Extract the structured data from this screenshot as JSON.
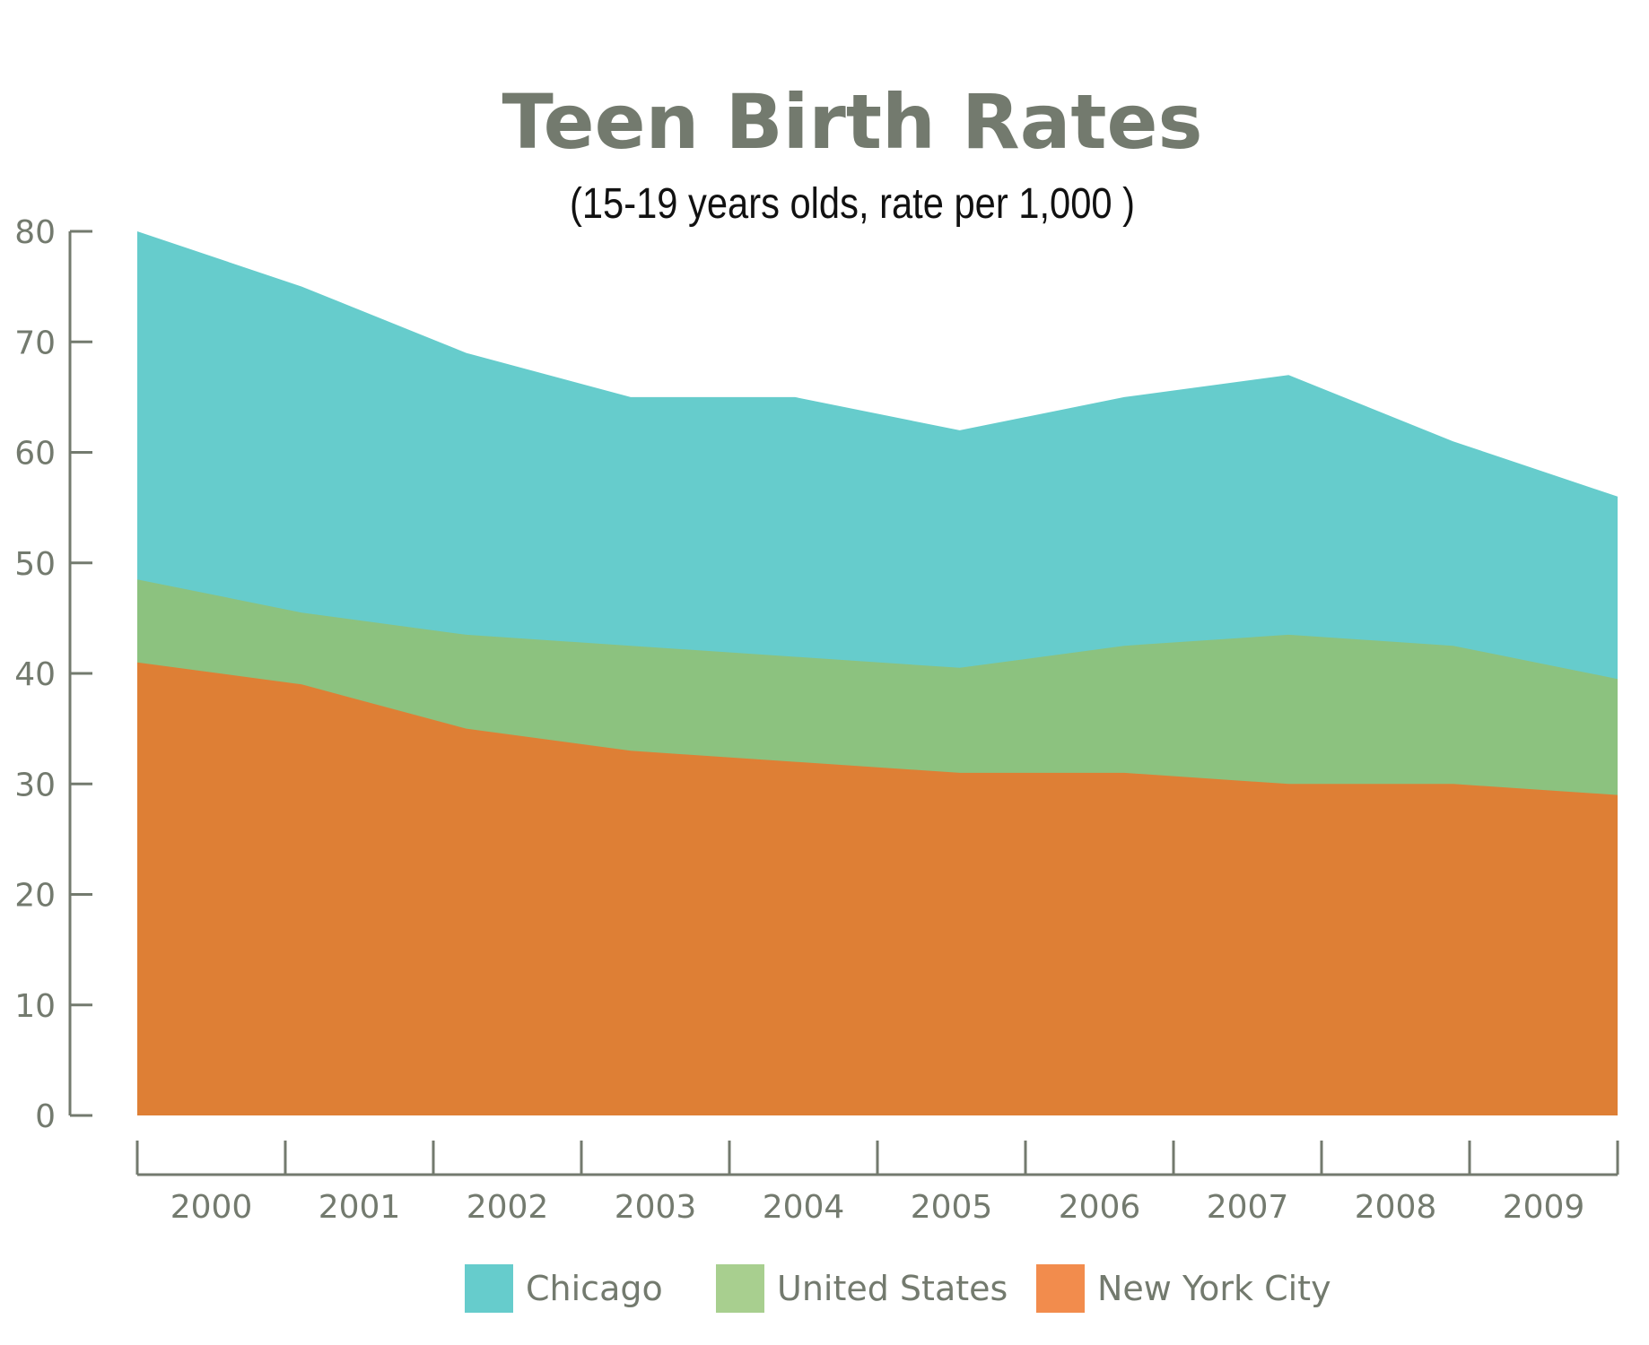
{
  "chart_data": {
    "type": "area",
    "stacked": false,
    "title": "Teen Birth Rates",
    "subtitle": "(15-19 years olds, rate per 1,000 )",
    "xlabel": "",
    "ylabel": "",
    "categories": [
      "2000",
      "2001",
      "2002",
      "2003",
      "2004",
      "2005",
      "2006",
      "2007",
      "2008",
      "2009"
    ],
    "ylim": [
      0,
      80
    ],
    "yticks": [
      "0",
      "10",
      "20",
      "30",
      "40",
      "50",
      "60",
      "70",
      "80"
    ],
    "grid": false,
    "legend_position": "bottom",
    "series": [
      {
        "name": "Chicago",
        "color": "#66cccc",
        "legend_color": "#66cccc",
        "values": [
          80,
          75,
          69,
          65,
          65,
          62,
          65,
          67,
          61,
          56
        ]
      },
      {
        "name": "United States",
        "color": "#8cc27f",
        "legend_color": "#a8cf8f",
        "values": [
          48.5,
          45.5,
          43.5,
          42.5,
          41.5,
          40.5,
          42.5,
          43.5,
          42.5,
          39.5
        ]
      },
      {
        "name": "New York City",
        "color": "#de7f35",
        "legend_color": "#f28c4d",
        "values": [
          41,
          39,
          35,
          33,
          32,
          31,
          31,
          30,
          30,
          29
        ]
      }
    ],
    "colors": {
      "axis": "#737a6e",
      "text": "#737a6e",
      "subtitle": "#111111"
    }
  }
}
